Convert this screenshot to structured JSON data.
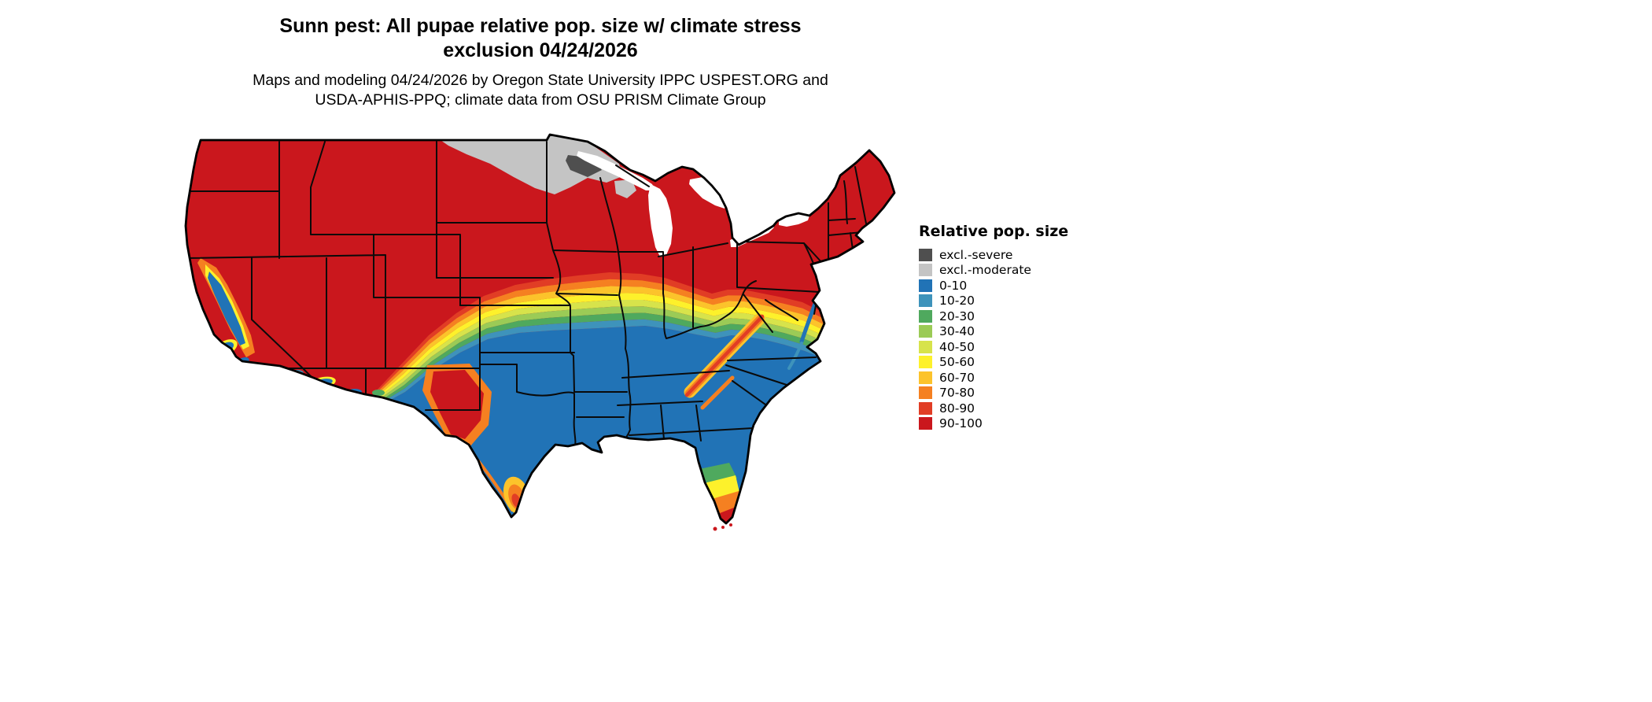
{
  "title": {
    "line1": "Sunn pest: All pupae relative pop. size w/ climate stress",
    "line2": "exclusion 04/24/2026"
  },
  "subtitle": {
    "line1": "Maps and modeling 04/24/2026 by Oregon State University IPPC USPEST.ORG and",
    "line2": "USDA-APHIS-PPQ; climate data from OSU PRISM Climate Group"
  },
  "map": {
    "area": "Contiguous United States"
  },
  "legend": {
    "title": "Relative pop. size",
    "items": [
      {
        "label": "excl.-severe",
        "color": "#4f4f4f"
      },
      {
        "label": "excl.-moderate",
        "color": "#c4c4c4"
      },
      {
        "label": "0-10",
        "color": "#2173b6"
      },
      {
        "label": "10-20",
        "color": "#3e93bb"
      },
      {
        "label": "20-30",
        "color": "#4fa95e"
      },
      {
        "label": "30-40",
        "color": "#9bcb56"
      },
      {
        "label": "40-50",
        "color": "#d7e34b"
      },
      {
        "label": "50-60",
        "color": "#fdf12b"
      },
      {
        "label": "60-70",
        "color": "#fcc32b"
      },
      {
        "label": "70-80",
        "color": "#f58021"
      },
      {
        "label": "80-90",
        "color": "#e13d25"
      },
      {
        "label": "90-100",
        "color": "#ca171d"
      }
    ]
  }
}
